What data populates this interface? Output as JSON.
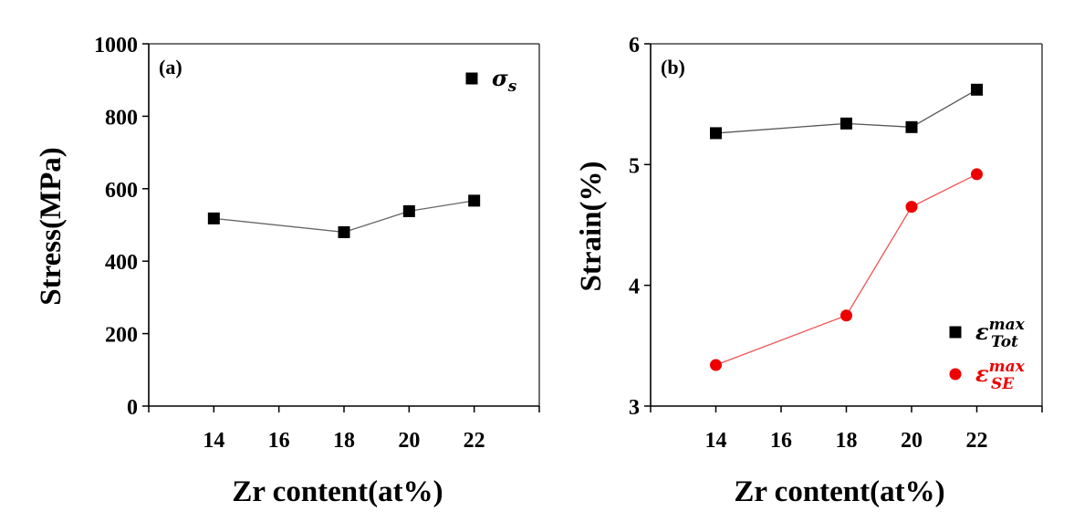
{
  "chart_data": [
    {
      "type": "line",
      "panel_label": "(a)",
      "title": "",
      "xlabel": "Zr content(at%)",
      "ylabel": "Stress(MPa)",
      "xlim": [
        12,
        24
      ],
      "ylim": [
        0,
        1000
      ],
      "xticks": [
        14,
        16,
        18,
        20,
        22
      ],
      "yticks": [
        0,
        200,
        400,
        600,
        800,
        1000
      ],
      "grid": false,
      "legend_position": "top-right",
      "x": [
        14,
        18,
        20,
        22
      ],
      "series": [
        {
          "name": "σs",
          "legend_symbol": "σ",
          "legend_sub": "s",
          "legend_sup": "",
          "marker": "square",
          "color": "#000000",
          "line_color": "#666666",
          "values": [
            518,
            480,
            538,
            567
          ]
        }
      ]
    },
    {
      "type": "line",
      "panel_label": "(b)",
      "title": "",
      "xlabel": "Zr content(at%)",
      "ylabel": "Strain(%)",
      "xlim": [
        12,
        24
      ],
      "ylim": [
        3,
        6
      ],
      "xticks": [
        14,
        16,
        18,
        20,
        22
      ],
      "yticks": [
        3,
        4,
        5,
        6
      ],
      "grid": false,
      "legend_position": "bottom-right",
      "x": [
        14,
        18,
        20,
        22
      ],
      "series": [
        {
          "name": "ε_Tot^max",
          "legend_symbol": "ε",
          "legend_sub": "Tot",
          "legend_sup": "max",
          "marker": "square",
          "color": "#000000",
          "line_color": "#555555",
          "values": [
            5.26,
            5.34,
            5.31,
            5.62
          ]
        },
        {
          "name": "ε_SE^max",
          "legend_symbol": "ε",
          "legend_sub": "SE",
          "legend_sup": "max",
          "marker": "circle",
          "color": "#ee0000",
          "line_color": "#ee5555",
          "values": [
            3.34,
            3.75,
            4.65,
            4.92
          ]
        }
      ]
    }
  ]
}
